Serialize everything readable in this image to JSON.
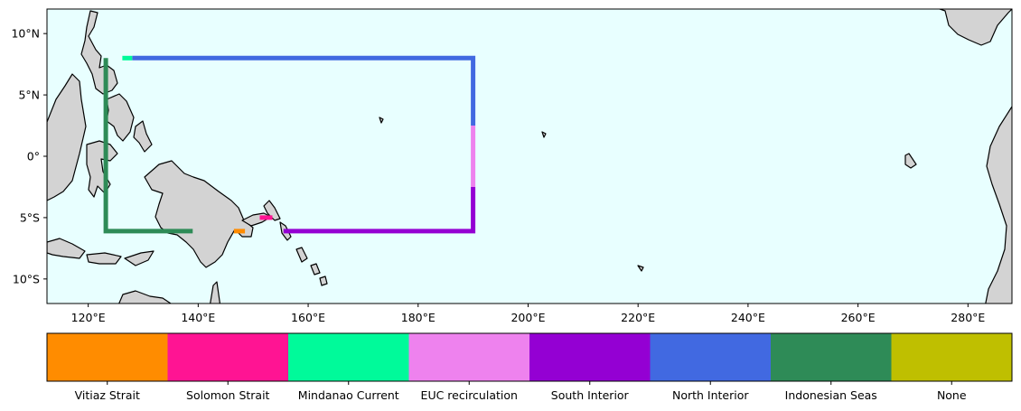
{
  "map": {
    "extent": {
      "lon": [
        112.5,
        288
      ],
      "lat": [
        -12,
        12
      ]
    },
    "ocean_color": "#e8ffff",
    "land_color": "#d3d3d3",
    "x_ticks": [
      {
        "value": 120,
        "label": "120°E"
      },
      {
        "value": 140,
        "label": "140°E"
      },
      {
        "value": 160,
        "label": "160°E"
      },
      {
        "value": 180,
        "label": "180°E"
      },
      {
        "value": 200,
        "label": "200°E"
      },
      {
        "value": 220,
        "label": "220°E"
      },
      {
        "value": 240,
        "label": "240°E"
      },
      {
        "value": 260,
        "label": "260°E"
      },
      {
        "value": 280,
        "label": "280°E"
      }
    ],
    "y_ticks": [
      {
        "value": 10,
        "label": "10°N"
      },
      {
        "value": 5,
        "label": "5°N"
      },
      {
        "value": 0,
        "label": "0°"
      },
      {
        "value": -5,
        "label": "5°S"
      },
      {
        "value": -10,
        "label": "10°S"
      }
    ],
    "boundary_segments": [
      {
        "category": "Indonesian Seas",
        "points": [
          [
            123.2,
            8
          ],
          [
            123.2,
            -6.1
          ],
          [
            139,
            -6.1
          ]
        ]
      },
      {
        "category": "Vitiaz Strait",
        "points": [
          [
            146.5,
            -6.1
          ],
          [
            148.5,
            -6.1
          ]
        ]
      },
      {
        "category": "Solomon Strait",
        "points": [
          [
            151.2,
            -5
          ],
          [
            153.5,
            -5
          ]
        ]
      },
      {
        "category": "South Interior",
        "points": [
          [
            155.5,
            -6.1
          ],
          [
            190,
            -6.1
          ],
          [
            190,
            -2.5
          ]
        ]
      },
      {
        "category": "EUC recirculation",
        "points": [
          [
            190,
            -2.5
          ],
          [
            190,
            2.5
          ]
        ]
      },
      {
        "category": "North Interior",
        "points": [
          [
            190,
            2.5
          ],
          [
            190,
            8
          ],
          [
            128,
            8
          ]
        ]
      },
      {
        "category": "Mindanao Current",
        "points": [
          [
            126.2,
            8
          ],
          [
            128,
            8
          ]
        ]
      }
    ]
  },
  "legend": {
    "items": [
      {
        "label": "Vitiaz Strait",
        "color": "#ff8c00"
      },
      {
        "label": "Solomon Strait",
        "color": "#ff1493"
      },
      {
        "label": "Mindanao Current",
        "color": "#00fa9a"
      },
      {
        "label": "EUC recirculation",
        "color": "#ee82ee"
      },
      {
        "label": "South Interior",
        "color": "#9400d3"
      },
      {
        "label": "North Interior",
        "color": "#4169e1"
      },
      {
        "label": "Indonesian Seas",
        "color": "#2e8b57"
      },
      {
        "label": "None",
        "color": "#bfbf00"
      }
    ]
  }
}
